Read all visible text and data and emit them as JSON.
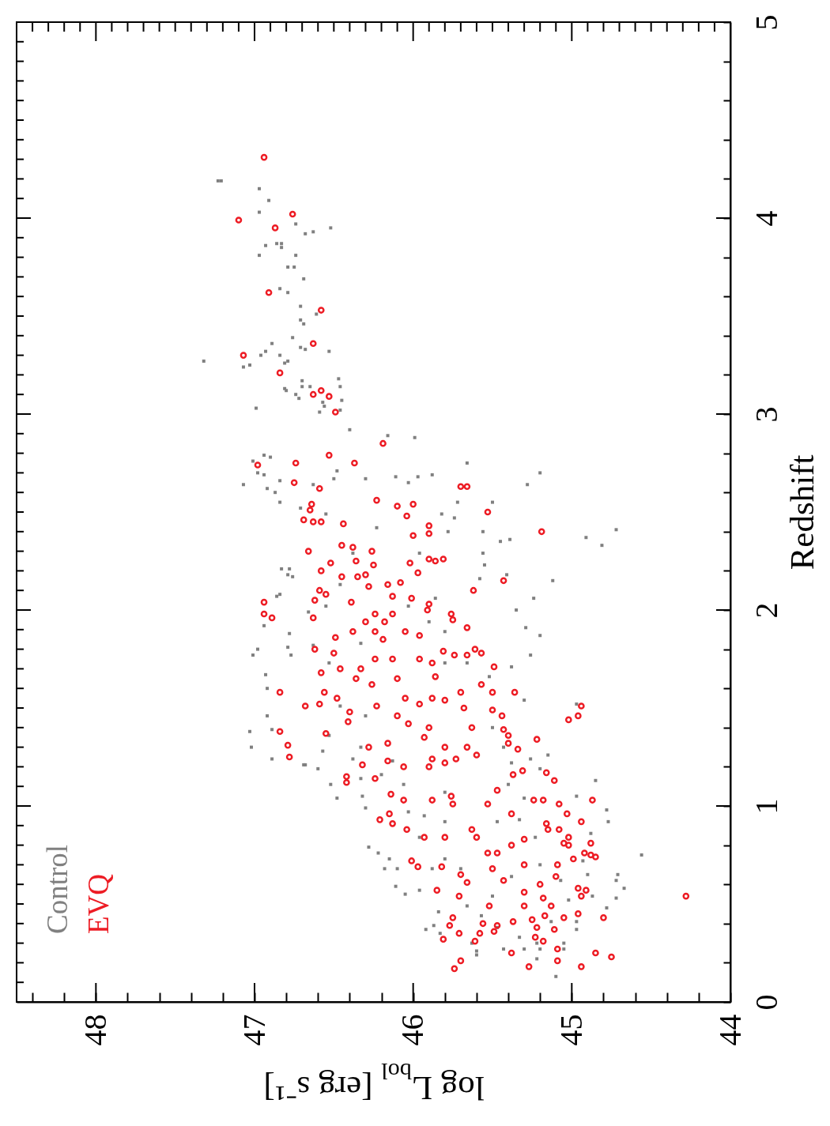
{
  "chart_data": {
    "type": "scatter",
    "xlabel": "log L$_{bol}$ [erg s⁻¹]",
    "ylabel": "Redshift",
    "xlim": [
      48.5,
      44
    ],
    "ylim": [
      0,
      5
    ],
    "xticks": [
      {
        "value": 48.4,
        "label": null
      },
      {
        "value": 48.3,
        "label": null
      },
      {
        "value": 48.2,
        "label": null
      },
      {
        "value": 48.1,
        "label": null
      },
      48,
      {
        "value": 47.9,
        "label": null
      },
      {
        "value": 47.8,
        "label": null
      },
      {
        "value": 47.7,
        "label": null
      },
      {
        "value": 47.6,
        "label": null
      },
      {
        "value": 47.5,
        "label": null
      },
      {
        "value": 47.4,
        "label": null
      },
      {
        "value": 47.3,
        "label": null
      },
      {
        "value": 47.2,
        "label": null
      },
      {
        "value": 47.1,
        "label": null
      },
      47,
      {
        "value": 46.9,
        "label": null
      },
      {
        "value": 46.8,
        "label": null
      },
      {
        "value": 46.7,
        "label": null
      },
      {
        "value": 46.6,
        "label": null
      },
      {
        "value": 46.5,
        "label": null
      },
      {
        "value": 46.4,
        "label": null
      },
      {
        "value": 46.3,
        "label": null
      },
      {
        "value": 46.2,
        "label": null
      },
      {
        "value": 46.1,
        "label": null
      },
      46,
      {
        "value": 45.9,
        "label": null
      },
      {
        "value": 45.8,
        "label": null
      },
      {
        "value": 45.7,
        "label": null
      },
      {
        "value": 45.6,
        "label": null
      },
      {
        "value": 45.5,
        "label": null
      },
      {
        "value": 45.4,
        "label": null
      },
      {
        "value": 45.3,
        "label": null
      },
      {
        "value": 45.2,
        "label": null
      },
      {
        "value": 45.1,
        "label": null
      },
      45,
      {
        "value": 44.9,
        "label": null
      },
      {
        "value": 44.8,
        "label": null
      },
      {
        "value": 44.7,
        "label": null
      },
      {
        "value": 44.6,
        "label": null
      },
      {
        "value": 44.5,
        "label": null
      },
      {
        "value": 44.4,
        "label": null
      },
      {
        "value": 44.3,
        "label": null
      },
      {
        "value": 44.2,
        "label": null
      },
      {
        "value": 44.1,
        "label": null
      },
      44
    ],
    "yticks": [
      0,
      {
        "value": 0.1,
        "label": null
      },
      {
        "value": 0.2,
        "label": null
      },
      {
        "value": 0.3,
        "label": null
      },
      {
        "value": 0.4,
        "label": null
      },
      {
        "value": 0.5,
        "label": null
      },
      {
        "value": 0.6,
        "label": null
      },
      {
        "value": 0.7,
        "label": null
      },
      {
        "value": 0.8,
        "label": null
      },
      {
        "value": 0.9,
        "label": null
      },
      1,
      {
        "value": 1.1,
        "label": null
      },
      {
        "value": 1.2,
        "label": null
      },
      {
        "value": 1.3,
        "label": null
      },
      {
        "value": 1.4,
        "label": null
      },
      {
        "value": 1.5,
        "label": null
      },
      {
        "value": 1.6,
        "label": null
      },
      {
        "value": 1.7,
        "label": null
      },
      {
        "value": 1.8,
        "label": null
      },
      {
        "value": 1.9,
        "label": null
      },
      2,
      {
        "value": 2.1,
        "label": null
      },
      {
        "value": 2.2,
        "label": null
      },
      {
        "value": 2.3,
        "label": null
      },
      {
        "value": 2.4,
        "label": null
      },
      {
        "value": 2.5,
        "label": null
      },
      {
        "value": 2.6,
        "label": null
      },
      {
        "value": 2.7,
        "label": null
      },
      {
        "value": 2.8,
        "label": null
      },
      {
        "value": 2.9,
        "label": null
      },
      3,
      {
        "value": 3.1,
        "label": null
      },
      {
        "value": 3.2,
        "label": null
      },
      {
        "value": 3.3,
        "label": null
      },
      {
        "value": 3.4,
        "label": null
      },
      {
        "value": 3.5,
        "label": null
      },
      {
        "value": 3.6,
        "label": null
      },
      {
        "value": 3.7,
        "label": null
      },
      {
        "value": 3.8,
        "label": null
      },
      {
        "value": 3.9,
        "label": null
      },
      4,
      {
        "value": 4.1,
        "label": null
      },
      {
        "value": 4.2,
        "label": null
      },
      {
        "value": 4.3,
        "label": null
      },
      {
        "value": 4.4,
        "label": null
      },
      {
        "value": 4.5,
        "label": null
      },
      {
        "value": 4.6,
        "label": null
      },
      {
        "value": 4.7,
        "label": null
      },
      {
        "value": 4.8,
        "label": null
      },
      {
        "value": 4.9,
        "label": null
      },
      5
    ],
    "legend": "bottom left",
    "series": [
      {
        "name": "Control",
        "color": "#808080",
        "marker": "square",
        "x": [
          47.23,
          47.21,
          46.97,
          46.91,
          46.97,
          46.74,
          46.68,
          46.63,
          46.52,
          46.86,
          46.83,
          46.83,
          46.93,
          46.97,
          46.74,
          46.79,
          46.75,
          46.69,
          46.84,
          46.79,
          46.71,
          46.61,
          46.71,
          46.69,
          46.76,
          46.89,
          46.71,
          46.68,
          46.53,
          47.32,
          46.96,
          46.93,
          47.07,
          47.03,
          46.84,
          46.81,
          46.79,
          46.7,
          46.7,
          46.65,
          46.47,
          46.46,
          46.81,
          46.8,
          46.74,
          46.72,
          46.57,
          46.56,
          46.59,
          46.45,
          46.46,
          46.99,
          46.4,
          46.16,
          45.99,
          46.94,
          46.9,
          47.01,
          45.66,
          45.2,
          45.28,
          46.11,
          45.97,
          45.88,
          46.03,
          46.3,
          46.5,
          46.48,
          47.07,
          46.98,
          46.94,
          46.84,
          46.92,
          46.87,
          46.84,
          46.63,
          45.72,
          45.5,
          45.82,
          45.74,
          45.78,
          45.56,
          44.72,
          44.91,
          44.81,
          45.45,
          45.39,
          45.56,
          45.55,
          45.12,
          45.41,
          45.58,
          45.24,
          45.35,
          45.29,
          45.2,
          45.26,
          45.38,
          45.3,
          44.97,
          45.15,
          45.26,
          46.83,
          46.78,
          46.79,
          46.76,
          46.86,
          46.84,
          46.94,
          46.78,
          46.79,
          46.77,
          46.93,
          46.92,
          46.92,
          46.89,
          46.89,
          46.69,
          46.57,
          46.38,
          46.46,
          46.55,
          46.66,
          46.63,
          46.53,
          46.33,
          46.46,
          46.3,
          46.53,
          46.33,
          46.38,
          46.13,
          46.03,
          45.9,
          45.8,
          45.8,
          45.66,
          45.52,
          45.5,
          45.43,
          45.38,
          45.96,
          45.86,
          46.23,
          46.55,
          46.71,
          47.03,
          47.01,
          47.02,
          46.98,
          44.56,
          44.67,
          44.71,
          44.72,
          44.72,
          44.78,
          44.85,
          44.78,
          44.77,
          44.88,
          45.1,
          45.22,
          44.97,
          45.6,
          45.6,
          45.92,
          45.87,
          45.84,
          46.11,
          46.05,
          46.18,
          46.28,
          46.22,
          46.48,
          46.52,
          46.6,
          46.68,
          46.32,
          46.3,
          46.15,
          46.1,
          45.96,
          45.83,
          45.63,
          45.43,
          45.3,
          45.2,
          45.05,
          44.97,
          44.87,
          44.9,
          44.97,
          44.93,
          46.03,
          45.93,
          45.8,
          45.47,
          45.33,
          45.23,
          45.2,
          45.38,
          45.5,
          45.7,
          45.8,
          45.88,
          45.13,
          45.33,
          45.47,
          45.57,
          45.66,
          45.07,
          45.02,
          45.05,
          45.22,
          45.8,
          46.06,
          46.2,
          46.33,
          45.96,
          45.4,
          45.3,
          45.2
        ],
        "values": [
          4.19,
          4.19,
          4.15,
          4.09,
          4.03,
          3.97,
          3.92,
          3.93,
          3.95,
          3.87,
          3.87,
          3.85,
          3.86,
          3.81,
          3.81,
          3.75,
          3.75,
          3.69,
          3.64,
          3.62,
          3.55,
          3.51,
          3.48,
          3.46,
          3.39,
          3.36,
          3.34,
          3.33,
          3.32,
          3.27,
          3.3,
          3.32,
          3.24,
          3.25,
          3.3,
          3.26,
          3.27,
          3.17,
          3.14,
          3.14,
          3.18,
          3.14,
          3.13,
          3.12,
          3.1,
          3.08,
          3.06,
          3.04,
          3.01,
          3.07,
          3.02,
          3.03,
          2.92,
          2.89,
          2.88,
          2.79,
          2.78,
          2.76,
          2.75,
          2.7,
          2.64,
          2.68,
          2.68,
          2.69,
          2.65,
          2.67,
          2.67,
          2.71,
          2.64,
          2.7,
          2.69,
          2.66,
          2.62,
          2.6,
          2.55,
          2.64,
          2.55,
          2.55,
          2.49,
          2.47,
          2.4,
          2.4,
          2.41,
          2.37,
          2.33,
          2.35,
          2.36,
          2.29,
          2.23,
          2.15,
          2.18,
          2.16,
          2.06,
          2.0,
          1.91,
          1.87,
          1.77,
          1.71,
          1.54,
          1.52,
          1.26,
          1.24,
          2.21,
          2.21,
          2.18,
          2.17,
          2.07,
          2.08,
          1.92,
          1.88,
          1.81,
          1.77,
          1.67,
          1.6,
          1.46,
          1.39,
          1.24,
          1.21,
          1.28,
          2.29,
          2.13,
          2.02,
          1.99,
          1.82,
          1.73,
          1.83,
          1.51,
          1.46,
          1.36,
          1.3,
          1.24,
          1.23,
          2.02,
          1.94,
          1.89,
          1.73,
          1.73,
          1.66,
          1.4,
          1.3,
          1.22,
          2.29,
          2.06,
          2.42,
          2.49,
          2.52,
          1.38,
          1.77,
          1.3,
          1.8,
          0.75,
          0.58,
          0.65,
          0.62,
          0.53,
          0.48,
          1.13,
          0.98,
          0.92,
          0.86,
          0.13,
          0.22,
          0.37,
          0.24,
          0.26,
          0.37,
          0.39,
          0.46,
          0.59,
          0.55,
          0.68,
          0.79,
          0.76,
          1.04,
          1.11,
          1.19,
          1.21,
          1.05,
          0.99,
          0.73,
          0.68,
          0.57,
          0.35,
          0.3,
          0.27,
          0.27,
          0.27,
          0.27,
          0.41,
          0.54,
          0.65,
          1.05,
          0.72,
          0.97,
          0.95,
          0.92,
          0.92,
          0.93,
          0.84,
          0.7,
          0.64,
          0.54,
          0.68,
          0.73,
          0.68,
          0.41,
          0.33,
          0.38,
          0.44,
          0.49,
          0.62,
          0.52,
          0.3,
          0.3,
          1.07,
          1.11,
          1.16,
          1.14,
          0.84,
          1.11,
          1.04,
          1.19
        ]
      },
      {
        "name": "EVQ",
        "color": "#ed1c24",
        "marker": "circle",
        "x": [
          46.94,
          47.1,
          46.76,
          46.87,
          46.91,
          46.58,
          46.63,
          47.07,
          46.84,
          46.63,
          46.58,
          46.53,
          46.49,
          46.19,
          46.53,
          46.98,
          46.74,
          46.37,
          46.75,
          45.7,
          45.66,
          46.59,
          46.23,
          46.1,
          46.0,
          46.64,
          46.65,
          46.69,
          46.63,
          46.58,
          46.44,
          46.04,
          45.53,
          45.9,
          45.9,
          46.0,
          45.19,
          46.45,
          46.38,
          46.26,
          46.66,
          45.9,
          45.86,
          45.81,
          46.02,
          46.52,
          46.36,
          46.25,
          46.58,
          45.97,
          46.45,
          46.35,
          46.3,
          45.43,
          45.62,
          46.94,
          46.94,
          46.89,
          46.59,
          46.55,
          46.62,
          46.39,
          46.63,
          45.66,
          45.76,
          45.75,
          45.9,
          45.91,
          46.62,
          46.49,
          46.84,
          46.68,
          46.59,
          46.84,
          46.79,
          46.78,
          46.55,
          46.32,
          45.81,
          45.74,
          45.66,
          45.61,
          45.57,
          45.49,
          45.57,
          45.5,
          45.36,
          45.5,
          45.44,
          44.94,
          44.96,
          45.02,
          45.22,
          45.43,
          45.4,
          45.4,
          45.34,
          45.16,
          46.1,
          46.13,
          46.05,
          45.96,
          45.88,
          45.8,
          46.1,
          46.03,
          45.9,
          45.93,
          45.8,
          45.88,
          45.73,
          46.16,
          46.19,
          46.24,
          46.38,
          46.3,
          46.18,
          46.05,
          45.96,
          46.24,
          46.33,
          46.46,
          46.36,
          46.26,
          45.96,
          45.88,
          45.86,
          46.23,
          46.4,
          46.41,
          45.7,
          45.68,
          45.63,
          45.66,
          45.6,
          46.16,
          46.08,
          46.13,
          46.01,
          46.28,
          46.24,
          46.13,
          46.5,
          46.58,
          46.56,
          46.48,
          46.28,
          46.16,
          46.06,
          46.42,
          46.42,
          46.24,
          46.14,
          46.06,
          46.15,
          46.21,
          46.13,
          46.04,
          46.01,
          45.97,
          45.82,
          45.85,
          45.71,
          45.75,
          45.77,
          45.81,
          45.71,
          45.7,
          45.74,
          45.61,
          45.58,
          45.56,
          45.49,
          45.47,
          45.38,
          45.27,
          45.09,
          45.09,
          45.18,
          45.23,
          44.85,
          44.75,
          44.94,
          44.8,
          44.96,
          45.05,
          45.11,
          44.96,
          44.91,
          44.94,
          44.88,
          44.92,
          44.88,
          44.85,
          45.02,
          45.05,
          45.02,
          44.99,
          44.94,
          45.03,
          45.08,
          44.87,
          45.08,
          45.15,
          45.16,
          45.09,
          45.1,
          45.11,
          45.24,
          45.18,
          45.37,
          45.31,
          44.28,
          45.3,
          45.43,
          45.18,
          45.76,
          45.63,
          45.5,
          45.66,
          45.52,
          45.37,
          45.22,
          45.3,
          45.38,
          45.3,
          45.53,
          45.7,
          45.9,
          45.8,
          45.88,
          45.75,
          45.53,
          45.47,
          45.38,
          45.93,
          45.8,
          45.6,
          45.47,
          45.3,
          45.2,
          45.13,
          45.25,
          45.17
        ],
        "values": [
          4.31,
          3.99,
          4.02,
          3.95,
          3.62,
          3.53,
          3.36,
          3.3,
          3.21,
          3.1,
          3.12,
          3.09,
          3.01,
          2.85,
          2.79,
          2.74,
          2.75,
          2.75,
          2.65,
          2.63,
          2.63,
          2.62,
          2.56,
          2.53,
          2.54,
          2.54,
          2.51,
          2.46,
          2.45,
          2.45,
          2.44,
          2.48,
          2.5,
          2.43,
          2.39,
          2.38,
          2.4,
          2.33,
          2.32,
          2.3,
          2.3,
          2.26,
          2.25,
          2.26,
          2.24,
          2.24,
          2.25,
          2.23,
          2.2,
          2.19,
          2.17,
          2.17,
          2.18,
          2.15,
          2.1,
          2.04,
          1.98,
          1.96,
          2.1,
          2.08,
          2.05,
          2.04,
          1.96,
          1.91,
          1.98,
          1.95,
          2.03,
          2.0,
          1.8,
          1.86,
          1.58,
          1.51,
          1.52,
          1.38,
          1.31,
          1.25,
          1.37,
          1.21,
          1.79,
          1.77,
          1.77,
          1.8,
          1.78,
          1.71,
          1.62,
          1.58,
          1.58,
          1.49,
          1.46,
          1.51,
          1.46,
          1.44,
          1.34,
          1.39,
          1.36,
          1.32,
          1.29,
          1.17,
          1.65,
          1.75,
          1.55,
          1.52,
          1.55,
          1.54,
          1.46,
          1.42,
          1.4,
          1.35,
          1.3,
          1.24,
          1.24,
          1.32,
          1.85,
          1.89,
          1.89,
          1.94,
          1.94,
          1.89,
          1.87,
          1.75,
          1.7,
          1.7,
          1.65,
          1.62,
          1.75,
          1.73,
          1.66,
          1.51,
          1.48,
          1.43,
          1.58,
          1.5,
          1.4,
          1.3,
          1.26,
          2.13,
          2.14,
          2.07,
          2.06,
          2.12,
          1.98,
          1.98,
          1.78,
          1.68,
          1.58,
          1.55,
          1.3,
          1.23,
          1.2,
          1.15,
          1.12,
          1.14,
          1.06,
          1.03,
          0.96,
          0.93,
          0.91,
          0.88,
          0.72,
          0.69,
          0.69,
          0.57,
          0.54,
          0.43,
          0.39,
          0.32,
          0.35,
          0.21,
          0.17,
          0.31,
          0.35,
          0.4,
          0.36,
          0.39,
          0.25,
          0.18,
          0.21,
          0.27,
          0.31,
          0.33,
          0.25,
          0.23,
          0.18,
          0.43,
          0.45,
          0.43,
          0.37,
          0.58,
          0.57,
          0.54,
          0.81,
          0.76,
          0.75,
          0.74,
          0.84,
          0.81,
          0.8,
          0.73,
          0.92,
          0.96,
          1.01,
          1.03,
          0.88,
          0.88,
          0.91,
          0.7,
          0.64,
          1.13,
          1.03,
          1.03,
          1.16,
          1.18,
          0.54,
          0.49,
          0.62,
          0.53,
          1.05,
          0.88,
          0.68,
          0.61,
          0.49,
          0.41,
          0.38,
          0.56,
          0.8,
          0.83,
          0.76,
          0.65,
          1.2,
          1.22,
          1.03,
          1.01,
          1.01,
          1.08,
          0.96,
          0.84,
          0.84,
          0.84,
          0.76,
          0.7,
          0.6,
          0.49,
          0.42,
          0.44
        ]
      }
    ]
  }
}
